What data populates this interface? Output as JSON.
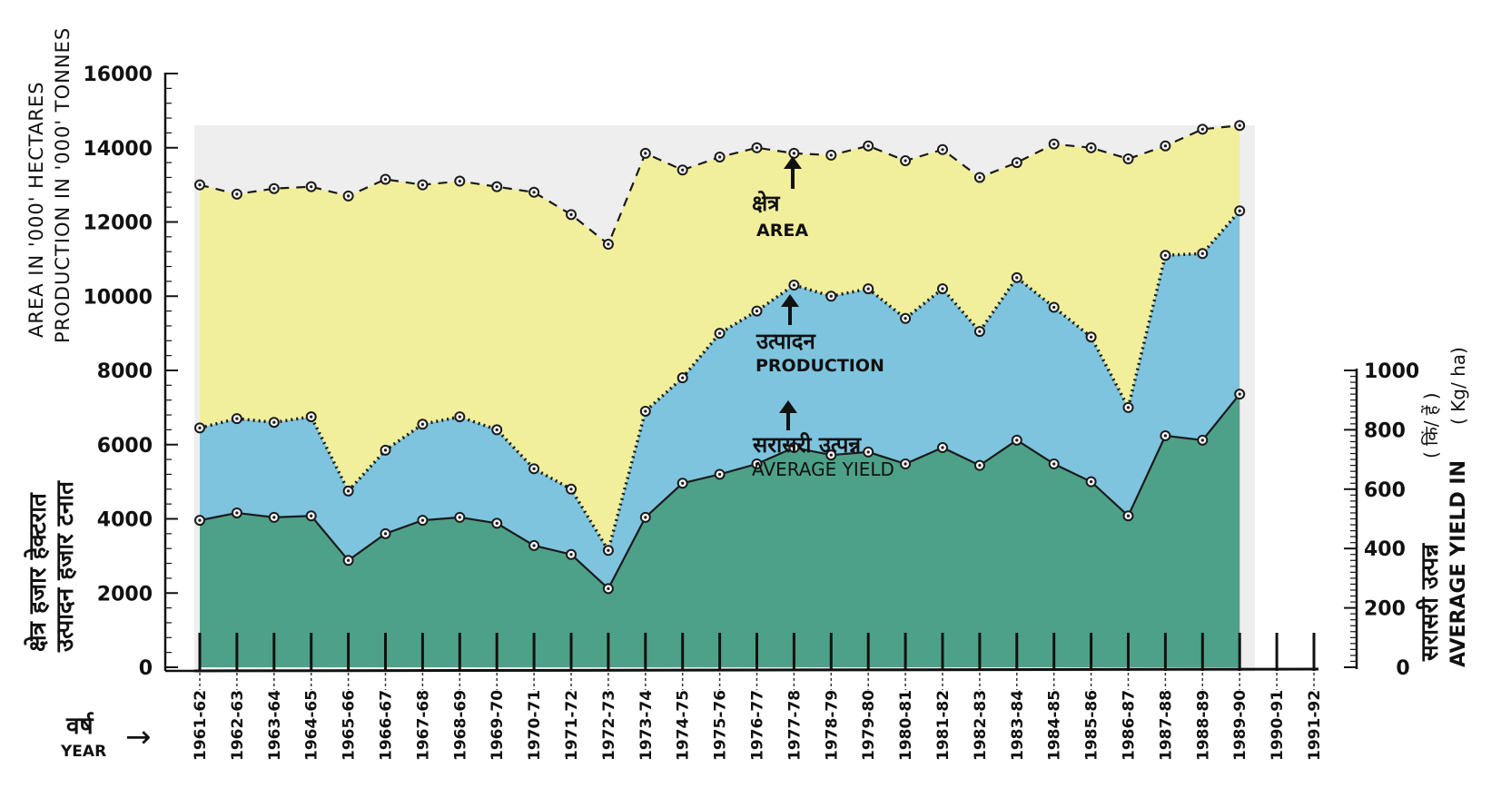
{
  "chart_data": {
    "type": "area",
    "categories": [
      "1961-62",
      "1962-63",
      "1963-64",
      "1964-65",
      "1965-66",
      "1966-67",
      "1967-68",
      "1968-69",
      "1969-70",
      "1970-71",
      "1971-72",
      "1972-73",
      "1973-74",
      "1974-75",
      "1975-76",
      "1976-77",
      "1977-78",
      "1978-79",
      "1979-80",
      "1980-81",
      "1981-82",
      "1982-83",
      "1983-84",
      "1984-85",
      "1985-86",
      "1986-87",
      "1987-88",
      "1988-89",
      "1989-90",
      "1990-91",
      "1991-92"
    ],
    "series": [
      {
        "name": "AREA",
        "name_hi": "क्षेत्र",
        "axis": "left",
        "color": "#f2ef9c",
        "values": [
          13000,
          12750,
          12900,
          12950,
          12700,
          13150,
          13000,
          13100,
          12950,
          12800,
          12200,
          11400,
          13850,
          13400,
          13750,
          14000,
          13850,
          13800,
          14050,
          13650,
          13950,
          13200,
          13600,
          14100,
          14000,
          13700,
          14050,
          14500,
          14600,
          null,
          null
        ]
      },
      {
        "name": "PRODUCTION",
        "name_hi": "उत्पादन",
        "axis": "left",
        "color": "#7ec4de",
        "values": [
          6450,
          6700,
          6600,
          6750,
          4750,
          5850,
          6550,
          6750,
          6400,
          5350,
          4800,
          3150,
          6900,
          7800,
          9000,
          9600,
          10300,
          10000,
          10200,
          9400,
          10200,
          9050,
          10500,
          9700,
          8900,
          7000,
          11100,
          11150,
          12300,
          null,
          null
        ]
      },
      {
        "name": "AVERAGE YIELD",
        "name_hi": "सरासरी उत्पन्न",
        "axis": "right",
        "unit": "Kg/ha",
        "color": "#4ea189",
        "values": [
          495,
          520,
          505,
          510,
          360,
          450,
          495,
          505,
          485,
          410,
          380,
          265,
          505,
          620,
          650,
          685,
          740,
          715,
          725,
          685,
          740,
          680,
          765,
          685,
          625,
          510,
          780,
          765,
          920,
          null,
          null
        ]
      }
    ],
    "left_axis": {
      "label_en_1": "AREA IN '000' HECTARES",
      "label_en_2": "PRODUCTION IN '000' TONNES",
      "label_hi_1": "क्षेत्र हजार हेक्टरात",
      "label_hi_2": "उत्पादन हजार टनात",
      "ylim": [
        0,
        16000
      ],
      "ticks": [
        "0",
        "2000",
        "4000",
        "6000",
        "8000",
        "10000",
        "12000",
        "14000",
        "16000"
      ]
    },
    "right_axis": {
      "label_hi": "सरासरी उत्पन्न",
      "label_en": "AVERAGE YIELD IN",
      "unit_hi": "( किं/ हें )",
      "unit_en": "( Kg/ ha)",
      "ylim": [
        0,
        1000
      ],
      "ticks": [
        "0",
        "200",
        "400",
        "600",
        "800",
        "1000"
      ]
    },
    "x_axis": {
      "label_hi": "वर्ष",
      "label_en": "YEAR",
      "arrow": "→"
    },
    "annotations": {
      "area_hi": "क्षेत्र",
      "area_en": "AREA",
      "production_hi": "उत्पादन",
      "production_en": "PRODUCTION",
      "yield_hi": "सरासरी उत्पन्न",
      "yield_en": "AVERAGE YIELD"
    },
    "grid": false,
    "legend": "none"
  }
}
